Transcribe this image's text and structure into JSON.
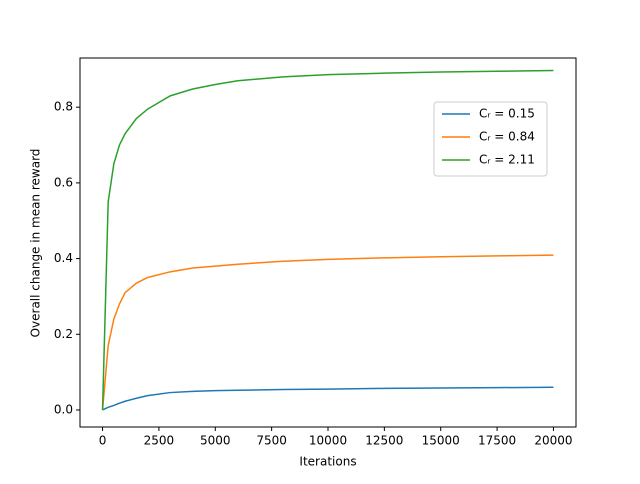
{
  "chart_data": {
    "type": "line",
    "xlabel": "Iterations",
    "ylabel": "Overall change in mean reward",
    "x": [
      0,
      250,
      500,
      750,
      1000,
      1500,
      2000,
      3000,
      4000,
      5000,
      6000,
      8000,
      10000,
      12500,
      15000,
      17500,
      20000
    ],
    "series": [
      {
        "name": "Cᵣ = 0.15",
        "color": "#1f77b4",
        "values": [
          0,
          0.007,
          0.012,
          0.018,
          0.023,
          0.031,
          0.038,
          0.046,
          0.049,
          0.051,
          0.052,
          0.054,
          0.055,
          0.057,
          0.058,
          0.059,
          0.06
        ]
      },
      {
        "name": "Cᵣ = 0.84",
        "color": "#ff7f0e",
        "values": [
          0,
          0.17,
          0.24,
          0.28,
          0.31,
          0.335,
          0.35,
          0.365,
          0.375,
          0.38,
          0.385,
          0.393,
          0.398,
          0.402,
          0.405,
          0.407,
          0.409
        ]
      },
      {
        "name": "Cᵣ = 2.11",
        "color": "#2ca02c",
        "values": [
          0,
          0.55,
          0.65,
          0.7,
          0.73,
          0.77,
          0.795,
          0.83,
          0.848,
          0.86,
          0.87,
          0.88,
          0.886,
          0.89,
          0.893,
          0.895,
          0.897
        ]
      }
    ],
    "xlim": [
      -1000,
      21000
    ],
    "ylim": [
      -0.045,
      0.93
    ],
    "xticks": [
      0,
      2500,
      5000,
      7500,
      10000,
      12500,
      15000,
      17500,
      20000
    ],
    "yticks": [
      {
        "value": 0,
        "label": "0.0"
      },
      0.2,
      0.4,
      0.6,
      0.8
    ],
    "legend": "upper right"
  }
}
